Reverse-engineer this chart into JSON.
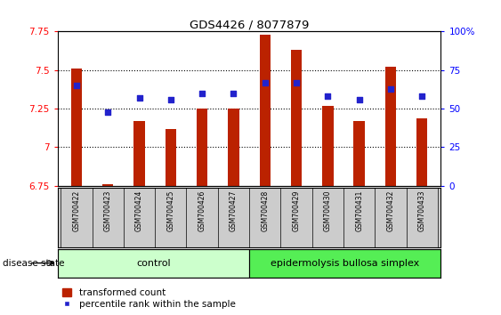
{
  "title": "GDS4426 / 8077879",
  "samples": [
    "GSM700422",
    "GSM700423",
    "GSM700424",
    "GSM700425",
    "GSM700426",
    "GSM700427",
    "GSM700428",
    "GSM700429",
    "GSM700430",
    "GSM700431",
    "GSM700432",
    "GSM700433"
  ],
  "transformed_count": [
    7.51,
    6.76,
    7.17,
    7.12,
    7.25,
    7.25,
    7.73,
    7.63,
    7.27,
    7.17,
    7.52,
    7.19
  ],
  "percentile_rank": [
    65,
    48,
    57,
    56,
    60,
    60,
    67,
    67,
    58,
    56,
    63,
    58
  ],
  "ylim_left": [
    6.75,
    7.75
  ],
  "ylim_right": [
    0,
    100
  ],
  "yticks_left": [
    6.75,
    7.0,
    7.25,
    7.5,
    7.75
  ],
  "yticks_right": [
    0,
    25,
    50,
    75,
    100
  ],
  "ytick_labels_left": [
    "6.75",
    "7",
    "7.25",
    "7.5",
    "7.75"
  ],
  "ytick_labels_right": [
    "0",
    "25",
    "50",
    "75",
    "100%"
  ],
  "bar_color": "#bb2200",
  "marker_color": "#2222cc",
  "bar_bottom": 6.75,
  "control_samples": 6,
  "control_label": "control",
  "disease_label": "epidermolysis bullosa simplex",
  "disease_state_label": "disease state",
  "legend_bar_label": "transformed count",
  "legend_marker_label": "percentile rank within the sample",
  "control_color": "#ccffcc",
  "disease_color": "#55ee55",
  "label_area_color": "#cccccc",
  "bar_width": 0.35,
  "grid_yticks": [
    7.0,
    7.25,
    7.5
  ]
}
